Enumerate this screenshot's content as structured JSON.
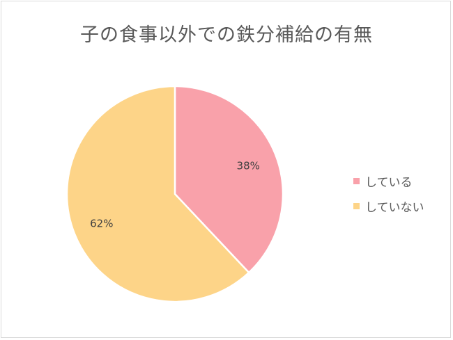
{
  "chart_data": {
    "type": "pie",
    "title": "子の食事以外での鉄分補給の有無",
    "slices": [
      {
        "label": "している",
        "value": 38,
        "display": "38%",
        "color": "#f9a1aa"
      },
      {
        "label": "していない",
        "value": 62,
        "display": "62%",
        "color": "#fdd488"
      }
    ],
    "legend_position": "right"
  }
}
